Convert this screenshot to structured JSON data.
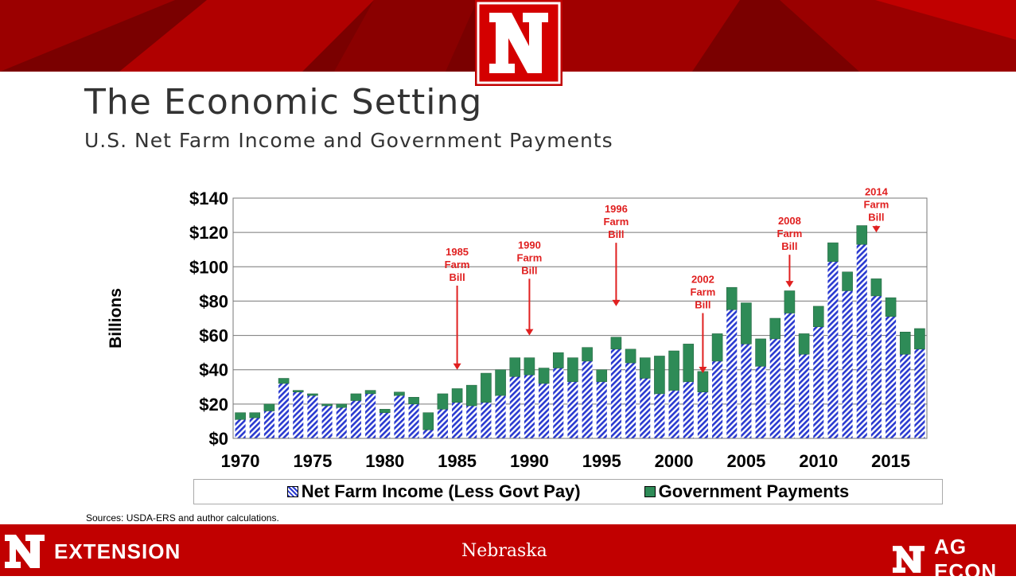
{
  "slide": {
    "title": "The Economic Setting",
    "subtitle": "U.S. Net Farm Income and Government Payments",
    "sources": "Sources: USDA-ERS and author calculations."
  },
  "footer": {
    "left_text": "EXTENSION",
    "center_text": "Nebraska",
    "right_text": "AG ECON"
  },
  "colors": {
    "banner_dark": "#8b0000",
    "banner_red": "#c10000",
    "net_income_blue": "#2a3ad0",
    "govt_green": "#2e8b57"
  },
  "chart_data": {
    "type": "bar",
    "stacked": true,
    "ylabel": "Billions",
    "ylim": [
      0,
      140
    ],
    "yticks": [
      "$0",
      "$20",
      "$40",
      "$60",
      "$80",
      "$100",
      "$120",
      "$140"
    ],
    "x": [
      1970,
      1971,
      1972,
      1973,
      1974,
      1975,
      1976,
      1977,
      1978,
      1979,
      1980,
      1981,
      1982,
      1983,
      1984,
      1985,
      1986,
      1987,
      1988,
      1989,
      1990,
      1991,
      1992,
      1993,
      1994,
      1995,
      1996,
      1997,
      1998,
      1999,
      2000,
      2001,
      2002,
      2003,
      2004,
      2005,
      2006,
      2007,
      2008,
      2009,
      2010,
      2011,
      2012,
      2013,
      2014,
      2015,
      2016,
      2017
    ],
    "xtick_labels": [
      "1970",
      "1975",
      "1980",
      "1985",
      "1990",
      "1995",
      "2000",
      "2005",
      "2010",
      "2015"
    ],
    "xtick_years": [
      1970,
      1975,
      1980,
      1985,
      1990,
      1995,
      2000,
      2005,
      2010,
      2015
    ],
    "grid": true,
    "legend": "bottom",
    "series": [
      {
        "name": "Net Farm Income (Less Govt Pay)",
        "values": [
          11,
          12,
          16,
          32,
          27,
          25,
          19,
          18,
          22,
          26,
          15,
          25,
          20,
          5,
          17,
          21,
          19,
          21,
          25,
          36,
          37,
          32,
          41,
          33,
          45,
          33,
          52,
          44,
          35,
          26,
          28,
          33,
          27,
          45,
          75,
          55,
          42,
          58,
          73,
          49,
          65,
          103,
          86,
          113,
          83,
          71,
          49,
          52
        ]
      },
      {
        "name": "Government Payments",
        "values": [
          4,
          3,
          4,
          3,
          1,
          1,
          1,
          2,
          4,
          2,
          2,
          2,
          4,
          10,
          9,
          8,
          12,
          17,
          15,
          11,
          10,
          9,
          9,
          14,
          8,
          7,
          7,
          8,
          12,
          22,
          23,
          22,
          12,
          16,
          13,
          24,
          16,
          12,
          13,
          12,
          12,
          11,
          11,
          11,
          10,
          11,
          13,
          12
        ]
      }
    ],
    "annotations": [
      {
        "year": 1985,
        "lines": [
          "1985",
          "Farm",
          "Bill"
        ],
        "arrow_from": 89,
        "arrow_to": 40
      },
      {
        "year": 1990,
        "lines": [
          "1990",
          "Farm",
          "Bill"
        ],
        "arrow_from": 93,
        "arrow_to": 60
      },
      {
        "year": 1996,
        "lines": [
          "1996",
          "Farm",
          "Bill"
        ],
        "arrow_from": 114,
        "arrow_to": 77
      },
      {
        "year": 2002,
        "lines": [
          "2002",
          "Farm",
          "Bill"
        ],
        "arrow_from": 73,
        "arrow_to": 38
      },
      {
        "year": 2008,
        "lines": [
          "2008",
          "Farm",
          "Bill"
        ],
        "arrow_from": 107,
        "arrow_to": 88
      },
      {
        "year": 2014,
        "lines": [
          "2014",
          "Farm",
          "Bill"
        ],
        "arrow_from": 124,
        "arrow_to": 120
      }
    ]
  }
}
